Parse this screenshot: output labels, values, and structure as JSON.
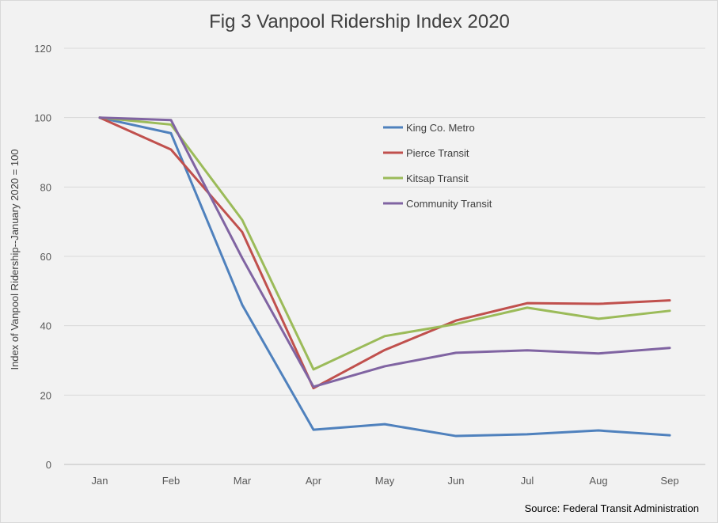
{
  "chart_data": {
    "type": "line",
    "title": "Fig 3 Vanpool Ridership Index 2020",
    "xlabel": "",
    "ylabel": "Index of Vanpool Ridership--January 2020 = 100",
    "categories": [
      "Jan",
      "Feb",
      "Mar",
      "Apr",
      "May",
      "Jun",
      "Jul",
      "Aug",
      "Sep"
    ],
    "ylim": [
      0,
      120
    ],
    "yticks": [
      0,
      20,
      40,
      60,
      80,
      100,
      120
    ],
    "grid": true,
    "legend": "upper-middle-right",
    "series": [
      {
        "name": "King Co. Metro",
        "color": "#4f81bd",
        "values": [
          100,
          95.5,
          46,
          10,
          11.6,
          8.2,
          8.7,
          9.8,
          8.4
        ]
      },
      {
        "name": "Pierce Transit",
        "color": "#c0504d",
        "values": [
          100,
          90.8,
          67,
          22,
          33,
          41.5,
          46.5,
          46.3,
          47.3
        ]
      },
      {
        "name": "Kitsap Transit",
        "color": "#9bbb59",
        "values": [
          100,
          98,
          70.5,
          27.4,
          37,
          40.5,
          45.2,
          42,
          44.3
        ]
      },
      {
        "name": "Community Transit",
        "color": "#8064a2",
        "values": [
          100,
          99.3,
          59.5,
          22.4,
          28.3,
          32.2,
          32.9,
          32,
          33.6
        ]
      }
    ],
    "source": "Source: Federal Transit Administration"
  }
}
